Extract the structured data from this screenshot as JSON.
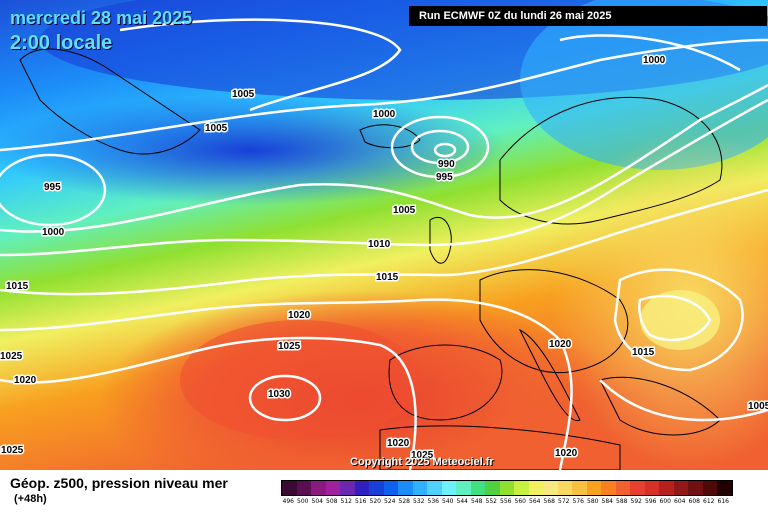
{
  "header": {
    "date": "mercredi 28 mai 2025",
    "time": "2:00 locale",
    "run": "Run ECMWF 0Z du lundi 26 mai 2025"
  },
  "copyright": "Copyright 2025 Meteociel.fr",
  "footer": {
    "title": "Géop. z500, pression niveau mer",
    "lead": "(+48h)"
  },
  "legend": {
    "values": [
      "496",
      "500",
      "504",
      "508",
      "512",
      "516",
      "520",
      "524",
      "528",
      "532",
      "536",
      "540",
      "544",
      "548",
      "552",
      "556",
      "560",
      "564",
      "568",
      "572",
      "576",
      "580",
      "584",
      "588",
      "592",
      "596",
      "600",
      "604",
      "608",
      "612",
      "616"
    ],
    "colors": [
      "#3a0a33",
      "#5a1050",
      "#8a1a80",
      "#a020a0",
      "#6a28b0",
      "#3020c0",
      "#1840d8",
      "#1060f0",
      "#1c8cf8",
      "#30b0ff",
      "#50d0ff",
      "#70f0ff",
      "#60f0c0",
      "#40e080",
      "#50d040",
      "#90e030",
      "#c8f040",
      "#f0f060",
      "#f8e880",
      "#f8d860",
      "#f8c040",
      "#f8a020",
      "#f88020",
      "#f06030",
      "#e84030",
      "#d83028",
      "#b82020",
      "#901818",
      "#701010",
      "#500808",
      "#200000"
    ]
  },
  "isobar_labels": [
    "1005",
    "1005",
    "995",
    "1000",
    "1000",
    "990",
    "995",
    "1000",
    "1005",
    "1010",
    "1015",
    "1015",
    "1020",
    "1025",
    "1025",
    "1020",
    "1030",
    "1025",
    "1020",
    "1020",
    "1015",
    "1020",
    "1005",
    "1025"
  ]
}
